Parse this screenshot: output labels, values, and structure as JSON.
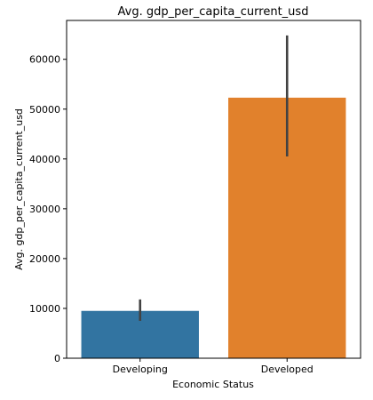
{
  "chart_data": {
    "type": "bar",
    "title": "Avg. gdp_per_capita_current_usd",
    "xlabel": "Economic Status",
    "ylabel": "Avg. gdp_per_capita_current_usd",
    "categories": [
      "Developing",
      "Developed"
    ],
    "values": [
      9500,
      52300
    ],
    "error_low": [
      7500,
      40500
    ],
    "error_high": [
      11800,
      64800
    ],
    "colors": [
      "#3274a1",
      "#e1812c"
    ],
    "ylim": [
      0,
      67800
    ],
    "yticks": [
      0,
      10000,
      20000,
      30000,
      40000,
      50000,
      60000
    ],
    "ytick_labels": [
      "0",
      "10000",
      "20000",
      "30000",
      "40000",
      "50000",
      "60000"
    ],
    "grid": false,
    "legend": "none"
  }
}
